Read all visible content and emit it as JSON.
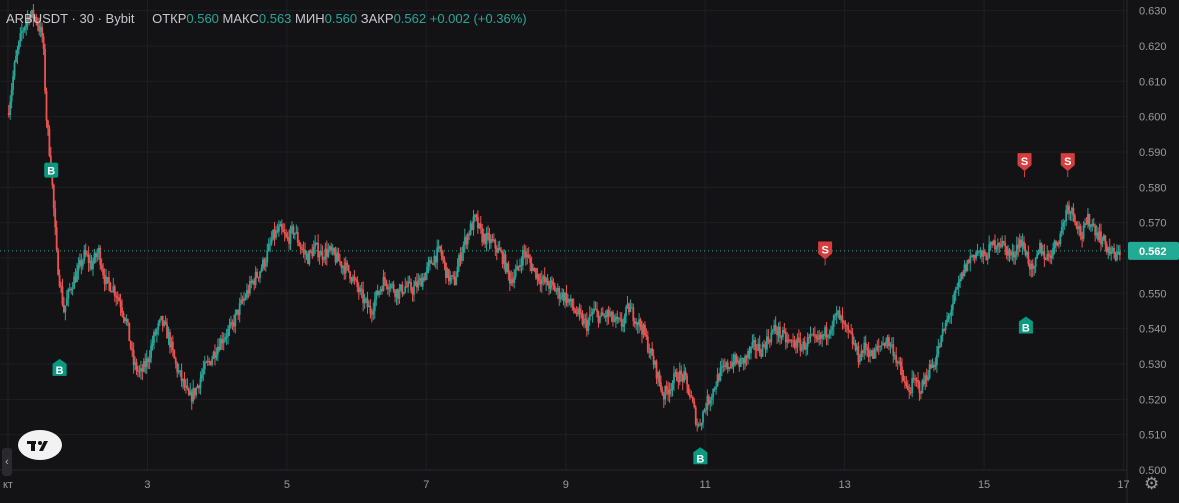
{
  "header": {
    "symbol": "ARBUSDT",
    "sep1": "·",
    "interval": "30",
    "sep2": "·",
    "exchange": "Bybit",
    "open_label": "ОТКР",
    "open_value": "0.560",
    "high_label": "МАКС",
    "high_value": "0.563",
    "low_label": "МИН",
    "low_value": "0.560",
    "close_label": "ЗАКР",
    "close_value": "0.562",
    "change": "+0.002 (+0.36%)"
  },
  "colors": {
    "background": "#131316",
    "up": "#26a69a",
    "down": "#ef5350",
    "buy_marker": "#089981",
    "sell_marker": "#d63d3d",
    "price_tag": "#22ab94",
    "grid": "#1f1f23",
    "axis_text": "#9a9a9e"
  },
  "icons": {
    "logo": "tradingview-logo",
    "settings": "gear-icon",
    "collapse": "chevron-left-icon"
  },
  "chart_data": {
    "type": "candlestick",
    "grid": true,
    "ylim": [
      0.5,
      0.633
    ],
    "xlim": [
      1.0,
      17.05
    ],
    "y_ticks": [
      "0.630",
      "0.620",
      "0.610",
      "0.600",
      "0.590",
      "0.580",
      "0.570",
      "0.560",
      "0.550",
      "0.540",
      "0.530",
      "0.520",
      "0.510",
      "0.500"
    ],
    "x_ticks": [
      {
        "label": "кт",
        "x": 1.0
      },
      {
        "label": "3",
        "x": 3.0
      },
      {
        "label": "5",
        "x": 5.0
      },
      {
        "label": "7",
        "x": 7.0
      },
      {
        "label": "9",
        "x": 9.0
      },
      {
        "label": "11",
        "x": 11.0
      },
      {
        "label": "13",
        "x": 13.0
      },
      {
        "label": "15",
        "x": 15.0
      },
      {
        "label": "17",
        "x": 17.0
      }
    ],
    "last_price": {
      "value": 0.562,
      "label": "0.562"
    },
    "price_path": [
      [
        1.0,
        0.601
      ],
      [
        1.1,
        0.615
      ],
      [
        1.2,
        0.624
      ],
      [
        1.3,
        0.629
      ],
      [
        1.4,
        0.628
      ],
      [
        1.5,
        0.622
      ],
      [
        1.55,
        0.6
      ],
      [
        1.62,
        0.585
      ],
      [
        1.7,
        0.56
      ],
      [
        1.8,
        0.545
      ],
      [
        1.9,
        0.552
      ],
      [
        2.0,
        0.556
      ],
      [
        2.1,
        0.561
      ],
      [
        2.2,
        0.558
      ],
      [
        2.3,
        0.562
      ],
      [
        2.4,
        0.553
      ],
      [
        2.5,
        0.552
      ],
      [
        2.6,
        0.548
      ],
      [
        2.7,
        0.542
      ],
      [
        2.8,
        0.53
      ],
      [
        2.9,
        0.527
      ],
      [
        3.0,
        0.531
      ],
      [
        3.1,
        0.538
      ],
      [
        3.2,
        0.542
      ],
      [
        3.3,
        0.538
      ],
      [
        3.4,
        0.53
      ],
      [
        3.5,
        0.525
      ],
      [
        3.6,
        0.52
      ],
      [
        3.7,
        0.523
      ],
      [
        3.8,
        0.528
      ],
      [
        3.9,
        0.531
      ],
      [
        4.0,
        0.535
      ],
      [
        4.1,
        0.538
      ],
      [
        4.2,
        0.54
      ],
      [
        4.3,
        0.545
      ],
      [
        4.4,
        0.549
      ],
      [
        4.5,
        0.553
      ],
      [
        4.6,
        0.556
      ],
      [
        4.7,
        0.56
      ],
      [
        4.8,
        0.566
      ],
      [
        4.9,
        0.568
      ],
      [
        5.0,
        0.565
      ],
      [
        5.1,
        0.568
      ],
      [
        5.2,
        0.563
      ],
      [
        5.3,
        0.56
      ],
      [
        5.4,
        0.563
      ],
      [
        5.5,
        0.561
      ],
      [
        5.6,
        0.562
      ],
      [
        5.7,
        0.56
      ],
      [
        5.8,
        0.558
      ],
      [
        5.9,
        0.556
      ],
      [
        6.0,
        0.552
      ],
      [
        6.1,
        0.548
      ],
      [
        6.2,
        0.545
      ],
      [
        6.3,
        0.55
      ],
      [
        6.4,
        0.554
      ],
      [
        6.5,
        0.552
      ],
      [
        6.6,
        0.55
      ],
      [
        6.7,
        0.552
      ],
      [
        6.8,
        0.551
      ],
      [
        6.9,
        0.553
      ],
      [
        7.0,
        0.556
      ],
      [
        7.1,
        0.56
      ],
      [
        7.2,
        0.562
      ],
      [
        7.3,
        0.555
      ],
      [
        7.4,
        0.553
      ],
      [
        7.5,
        0.562
      ],
      [
        7.6,
        0.567
      ],
      [
        7.7,
        0.571
      ],
      [
        7.8,
        0.566
      ],
      [
        7.9,
        0.565
      ],
      [
        8.0,
        0.563
      ],
      [
        8.1,
        0.56
      ],
      [
        8.2,
        0.554
      ],
      [
        8.3,
        0.556
      ],
      [
        8.4,
        0.562
      ],
      [
        8.5,
        0.558
      ],
      [
        8.6,
        0.555
      ],
      [
        8.7,
        0.553
      ],
      [
        8.8,
        0.552
      ],
      [
        8.9,
        0.55
      ],
      [
        9.0,
        0.549
      ],
      [
        9.1,
        0.546
      ],
      [
        9.2,
        0.543
      ],
      [
        9.3,
        0.541
      ],
      [
        9.4,
        0.545
      ],
      [
        9.5,
        0.543
      ],
      [
        9.6,
        0.544
      ],
      [
        9.7,
        0.542
      ],
      [
        9.8,
        0.541
      ],
      [
        9.9,
        0.546
      ],
      [
        10.0,
        0.543
      ],
      [
        10.1,
        0.54
      ],
      [
        10.2,
        0.534
      ],
      [
        10.3,
        0.528
      ],
      [
        10.4,
        0.521
      ],
      [
        10.5,
        0.524
      ],
      [
        10.6,
        0.527
      ],
      [
        10.7,
        0.526
      ],
      [
        10.8,
        0.52
      ],
      [
        10.9,
        0.512
      ],
      [
        11.0,
        0.518
      ],
      [
        11.1,
        0.522
      ],
      [
        11.2,
        0.527
      ],
      [
        11.3,
        0.529
      ],
      [
        11.4,
        0.531
      ],
      [
        11.5,
        0.53
      ],
      [
        11.6,
        0.532
      ],
      [
        11.7,
        0.535
      ],
      [
        11.8,
        0.534
      ],
      [
        11.9,
        0.537
      ],
      [
        12.0,
        0.54
      ],
      [
        12.1,
        0.538
      ],
      [
        12.2,
        0.536
      ],
      [
        12.3,
        0.536
      ],
      [
        12.4,
        0.535
      ],
      [
        12.5,
        0.537
      ],
      [
        12.6,
        0.536
      ],
      [
        12.7,
        0.538
      ],
      [
        12.8,
        0.541
      ],
      [
        12.9,
        0.544
      ],
      [
        13.0,
        0.54
      ],
      [
        13.1,
        0.537
      ],
      [
        13.2,
        0.532
      ],
      [
        13.3,
        0.535
      ],
      [
        13.4,
        0.532
      ],
      [
        13.5,
        0.535
      ],
      [
        13.6,
        0.537
      ],
      [
        13.7,
        0.534
      ],
      [
        13.8,
        0.528
      ],
      [
        13.9,
        0.522
      ],
      [
        14.0,
        0.525
      ],
      [
        14.1,
        0.523
      ],
      [
        14.2,
        0.528
      ],
      [
        14.3,
        0.531
      ],
      [
        14.4,
        0.538
      ],
      [
        14.5,
        0.544
      ],
      [
        14.6,
        0.55
      ],
      [
        14.7,
        0.556
      ],
      [
        14.8,
        0.56
      ],
      [
        14.9,
        0.562
      ],
      [
        15.0,
        0.56
      ],
      [
        15.1,
        0.563
      ],
      [
        15.2,
        0.565
      ],
      [
        15.3,
        0.563
      ],
      [
        15.4,
        0.56
      ],
      [
        15.5,
        0.565
      ],
      [
        15.6,
        0.562
      ],
      [
        15.7,
        0.555
      ],
      [
        15.8,
        0.563
      ],
      [
        15.9,
        0.56
      ],
      [
        16.0,
        0.563
      ],
      [
        16.1,
        0.567
      ],
      [
        16.2,
        0.575
      ],
      [
        16.3,
        0.572
      ],
      [
        16.4,
        0.566
      ],
      [
        16.5,
        0.571
      ],
      [
        16.6,
        0.568
      ],
      [
        16.7,
        0.565
      ],
      [
        16.8,
        0.562
      ],
      [
        16.9,
        0.56
      ],
      [
        16.95,
        0.562
      ]
    ],
    "candles_per_day": 48,
    "markers": [
      {
        "type": "B",
        "x": 1.62,
        "y": 0.585,
        "position": "on"
      },
      {
        "type": "B",
        "x": 1.74,
        "y": 0.532,
        "position": "below"
      },
      {
        "type": "B",
        "x": 10.93,
        "y": 0.507,
        "position": "below"
      },
      {
        "type": "S",
        "x": 12.72,
        "y": 0.559,
        "position": "above"
      },
      {
        "type": "S",
        "x": 15.58,
        "y": 0.584,
        "position": "above"
      },
      {
        "type": "B",
        "x": 15.6,
        "y": 0.544,
        "position": "below"
      },
      {
        "type": "S",
        "x": 16.2,
        "y": 0.584,
        "position": "above"
      }
    ],
    "marker_text": {
      "B": "B",
      "S": "S"
    }
  }
}
